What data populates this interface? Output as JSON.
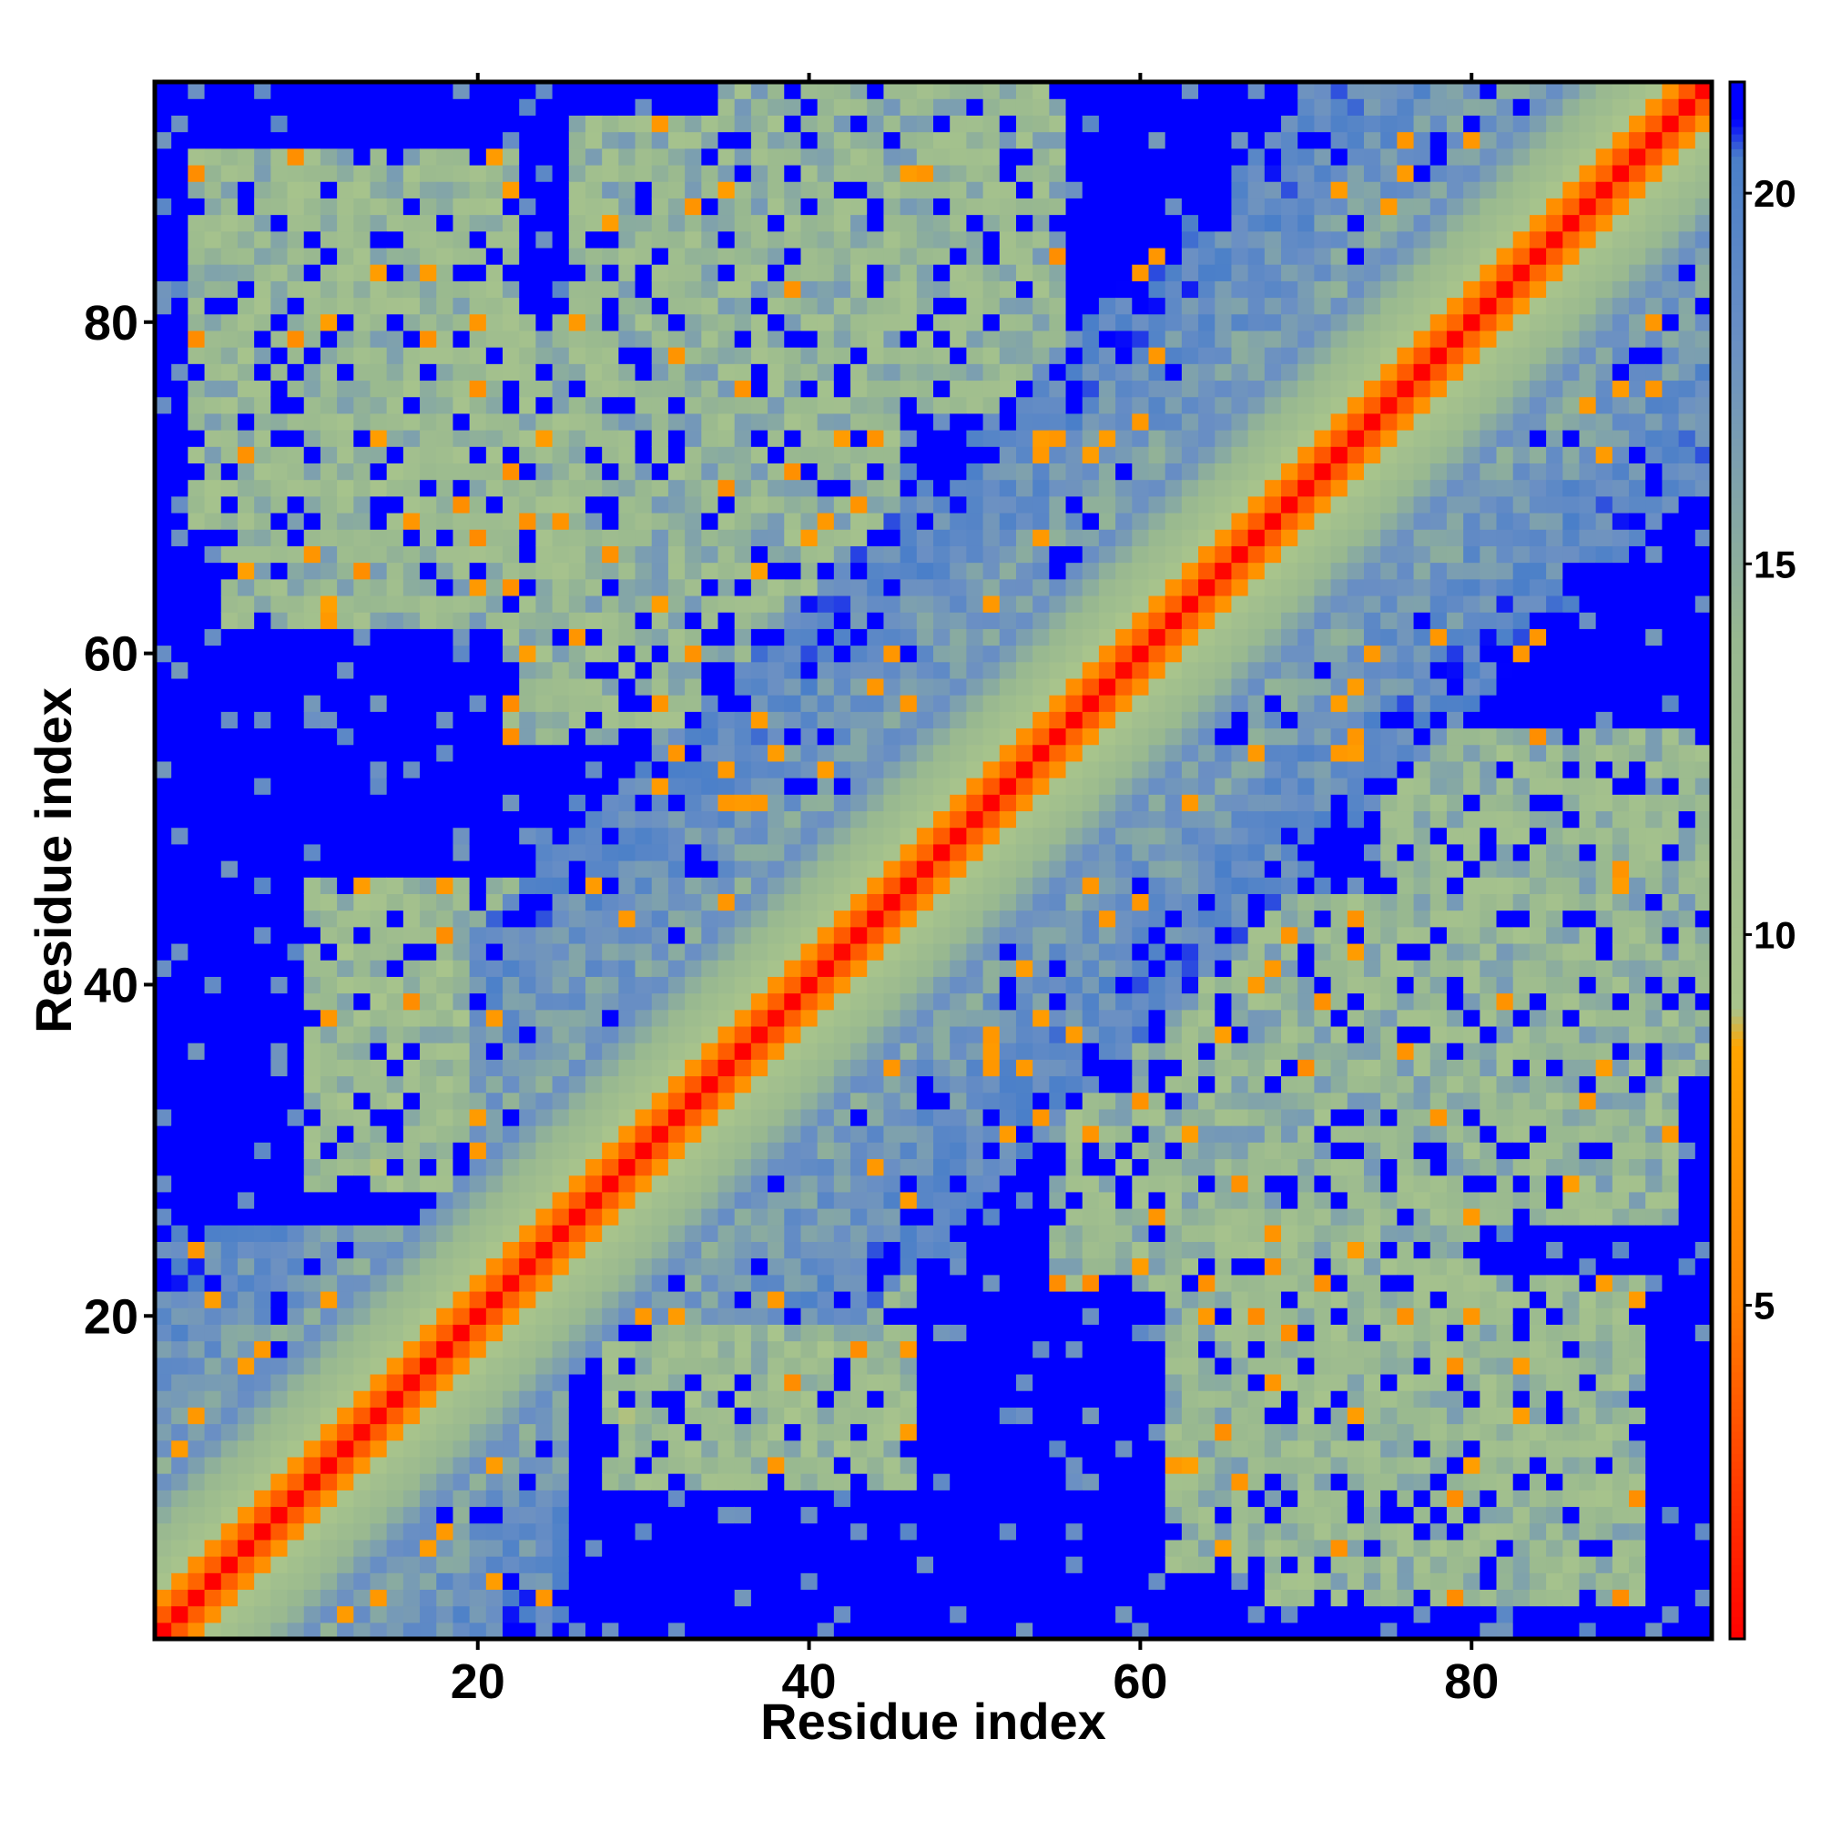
{
  "chart_data": {
    "type": "heatmap",
    "title": "",
    "xlabel": "Residue index",
    "ylabel": "Residue index",
    "n_residues": 94,
    "xlim": [
      0.5,
      94.5
    ],
    "ylim": [
      0.5,
      94.5
    ],
    "x_ticks": [
      20,
      40,
      60,
      80
    ],
    "y_ticks": [
      20,
      40,
      60,
      80
    ],
    "colorbar": {
      "range": [
        0.5,
        21.5
      ],
      "ticks": [
        5,
        10,
        15,
        20
      ],
      "stops": [
        {
          "value": 0.5,
          "color": "#ff0000"
        },
        {
          "value": 5.0,
          "color": "#ff8000"
        },
        {
          "value": 8.5,
          "color": "#ffa500"
        },
        {
          "value": 9.0,
          "color": "#a8c48c"
        },
        {
          "value": 14.0,
          "color": "#98b890"
        },
        {
          "value": 18.0,
          "color": "#6a8fc4"
        },
        {
          "value": 20.5,
          "color": "#4a7fc9"
        },
        {
          "value": 21.0,
          "color": "#0000ff"
        }
      ]
    },
    "domains": [
      {
        "x": [
          1,
          25
        ],
        "y": [
          1,
          25
        ]
      },
      {
        "x": [
          20,
          70
        ],
        "y": [
          20,
          70
        ]
      },
      {
        "x": [
          50,
          94
        ],
        "y": [
          50,
          94
        ]
      }
    ],
    "contact_regions": [
      {
        "x": [
          3,
          22
        ],
        "y": [
          68,
          90
        ],
        "mean": 13.5
      },
      {
        "x": [
          26,
          45
        ],
        "y": [
          60,
          92
        ],
        "mean": 14.0
      },
      {
        "x": [
          10,
          30
        ],
        "y": [
          28,
          46
        ],
        "mean": 13.0
      },
      {
        "x": [
          62,
          90
        ],
        "y": [
          5,
          22
        ],
        "mean": 14.0
      },
      {
        "x": [
          75,
          94
        ],
        "y": [
          35,
          55
        ],
        "mean": 14.0
      },
      {
        "x": [
          55,
          80
        ],
        "y": [
          22,
          45
        ],
        "mean": 13.5
      }
    ],
    "diagonal_profile": [
      0.5,
      3.8,
      6.5,
      9.3,
      10.8,
      12.3,
      13.6,
      15.0,
      16.5,
      18.0
    ]
  }
}
